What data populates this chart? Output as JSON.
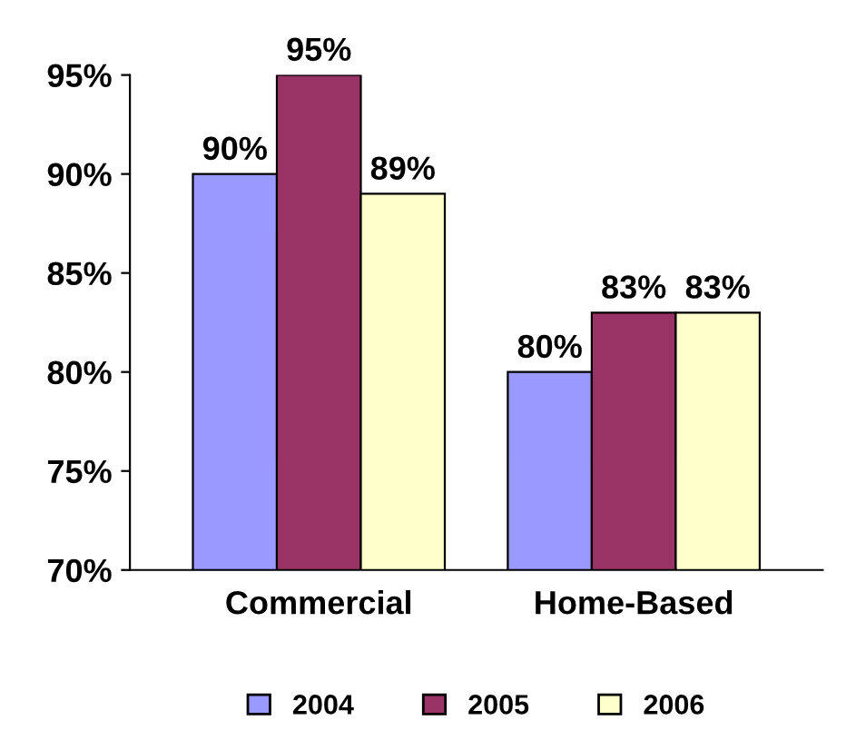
{
  "chart_data": {
    "type": "bar",
    "categories": [
      "Commercial",
      "Home-Based"
    ],
    "series": [
      {
        "name": "2004",
        "color": "#9999ff",
        "values": [
          90,
          80
        ],
        "value_labels": [
          "90%",
          "80%"
        ]
      },
      {
        "name": "2005",
        "color": "#993366",
        "values": [
          95,
          83
        ],
        "value_labels": [
          "95%",
          "83%"
        ]
      },
      {
        "name": "2006",
        "color": "#ffffcc",
        "values": [
          89,
          83
        ],
        "value_labels": [
          "89%",
          "83%"
        ]
      }
    ],
    "ylim": [
      70,
      95
    ],
    "yticks": [
      {
        "value": 70,
        "label": "70%"
      },
      {
        "value": 75,
        "label": "75%"
      },
      {
        "value": 80,
        "label": "80%"
      },
      {
        "value": 85,
        "label": "85%"
      },
      {
        "value": 90,
        "label": "90%"
      },
      {
        "value": 95,
        "label": "95%"
      }
    ],
    "grid": false,
    "legend": "bottom"
  }
}
